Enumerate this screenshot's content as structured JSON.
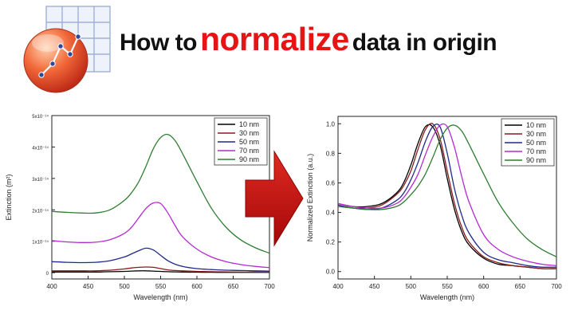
{
  "header": {
    "prefix": "How to",
    "highlight": "normalize",
    "suffix": "data in origin",
    "highlight_color": "#e81313"
  },
  "logo": {
    "icon": "origin-logo-icon"
  },
  "arrow": {
    "icon": "right-arrow-icon",
    "color": "#c00000"
  },
  "series_colors": [
    "#000000",
    "#8b1a1a",
    "#1f2a8a",
    "#b22ad0",
    "#2e7d32"
  ],
  "chart_data": [
    {
      "type": "line",
      "title": "",
      "xlabel": "Wavelength (nm)",
      "ylabel": "Extinction (m²)",
      "xlim": [
        400,
        700
      ],
      "ylim": [
        -0.2,
        5
      ],
      "y_unit_note": "values in units of 1e-14 m²",
      "xticks": [
        "400",
        "450",
        "500",
        "550",
        "600",
        "650",
        "700"
      ],
      "ytick_values": [
        0,
        1,
        2,
        3,
        4,
        5
      ],
      "yticks": [
        "0",
        "1x10⁻¹⁴",
        "2x10⁻¹⁴",
        "3x10⁻¹⁴",
        "4x10⁻¹⁴",
        "5x10⁻¹⁴"
      ],
      "legend_position": "top-right",
      "grid": false,
      "x": [
        400,
        420,
        440,
        460,
        480,
        500,
        510,
        520,
        530,
        540,
        550,
        560,
        570,
        580,
        600,
        620,
        640,
        660,
        680,
        700
      ],
      "series": [
        {
          "name": "10 nm",
          "values": [
            0.02,
            0.02,
            0.02,
            0.02,
            0.03,
            0.04,
            0.05,
            0.06,
            0.06,
            0.05,
            0.04,
            0.03,
            0.025,
            0.02,
            0.015,
            0.012,
            0.01,
            0.01,
            0.01,
            0.01
          ]
        },
        {
          "name": "30 nm",
          "values": [
            0.06,
            0.06,
            0.06,
            0.06,
            0.08,
            0.12,
            0.15,
            0.17,
            0.18,
            0.17,
            0.13,
            0.09,
            0.07,
            0.06,
            0.04,
            0.03,
            0.025,
            0.02,
            0.02,
            0.02
          ]
        },
        {
          "name": "50 nm",
          "values": [
            0.35,
            0.33,
            0.32,
            0.33,
            0.38,
            0.5,
            0.6,
            0.7,
            0.78,
            0.72,
            0.55,
            0.38,
            0.27,
            0.2,
            0.13,
            0.1,
            0.08,
            0.07,
            0.06,
            0.05
          ]
        },
        {
          "name": "70 nm",
          "values": [
            1.02,
            0.98,
            0.96,
            0.97,
            1.05,
            1.25,
            1.45,
            1.75,
            2.05,
            2.22,
            2.2,
            1.9,
            1.5,
            1.15,
            0.75,
            0.5,
            0.35,
            0.26,
            0.2,
            0.16
          ]
        },
        {
          "name": "90 nm",
          "values": [
            1.95,
            1.92,
            1.9,
            1.9,
            2.0,
            2.3,
            2.55,
            2.9,
            3.4,
            3.95,
            4.3,
            4.4,
            4.2,
            3.8,
            2.9,
            2.05,
            1.45,
            1.05,
            0.8,
            0.62
          ]
        }
      ]
    },
    {
      "type": "line",
      "title": "",
      "xlabel": "Wavelength (nm)",
      "ylabel": "Normalized Extinction (a.u.)",
      "xlim": [
        400,
        700
      ],
      "ylim": [
        -0.05,
        1.05
      ],
      "xticks": [
        "400",
        "450",
        "500",
        "550",
        "600",
        "650",
        "700"
      ],
      "ytick_values": [
        0,
        0.2,
        0.4,
        0.6,
        0.8,
        1.0
      ],
      "yticks": [
        "0.0",
        "0.2",
        "0.4",
        "0.6",
        "0.8",
        "1.0"
      ],
      "legend_position": "top-right",
      "grid": false,
      "x": [
        400,
        420,
        440,
        460,
        480,
        490,
        500,
        510,
        520,
        530,
        540,
        550,
        560,
        570,
        580,
        600,
        620,
        640,
        660,
        680,
        700
      ],
      "series": [
        {
          "name": "10 nm",
          "values": [
            0.46,
            0.44,
            0.44,
            0.46,
            0.53,
            0.6,
            0.72,
            0.87,
            0.98,
            0.98,
            0.86,
            0.63,
            0.42,
            0.27,
            0.18,
            0.09,
            0.05,
            0.04,
            0.03,
            0.02,
            0.02
          ]
        },
        {
          "name": "30 nm",
          "values": [
            0.45,
            0.43,
            0.43,
            0.45,
            0.52,
            0.58,
            0.68,
            0.83,
            0.96,
            1.0,
            0.9,
            0.68,
            0.46,
            0.3,
            0.2,
            0.1,
            0.06,
            0.04,
            0.03,
            0.02,
            0.02
          ]
        },
        {
          "name": "50 nm",
          "values": [
            0.45,
            0.43,
            0.42,
            0.43,
            0.48,
            0.53,
            0.62,
            0.74,
            0.88,
            0.98,
            0.98,
            0.8,
            0.56,
            0.38,
            0.26,
            0.13,
            0.08,
            0.06,
            0.04,
            0.03,
            0.03
          ]
        },
        {
          "name": "70 nm",
          "values": [
            0.46,
            0.44,
            0.43,
            0.43,
            0.46,
            0.5,
            0.57,
            0.66,
            0.79,
            0.91,
            0.99,
            0.98,
            0.84,
            0.64,
            0.47,
            0.25,
            0.15,
            0.1,
            0.07,
            0.05,
            0.04
          ]
        },
        {
          "name": "90 nm",
          "values": [
            0.44,
            0.43,
            0.42,
            0.42,
            0.44,
            0.47,
            0.52,
            0.58,
            0.66,
            0.77,
            0.89,
            0.97,
            0.99,
            0.95,
            0.86,
            0.66,
            0.47,
            0.33,
            0.22,
            0.15,
            0.1
          ]
        }
      ]
    }
  ]
}
